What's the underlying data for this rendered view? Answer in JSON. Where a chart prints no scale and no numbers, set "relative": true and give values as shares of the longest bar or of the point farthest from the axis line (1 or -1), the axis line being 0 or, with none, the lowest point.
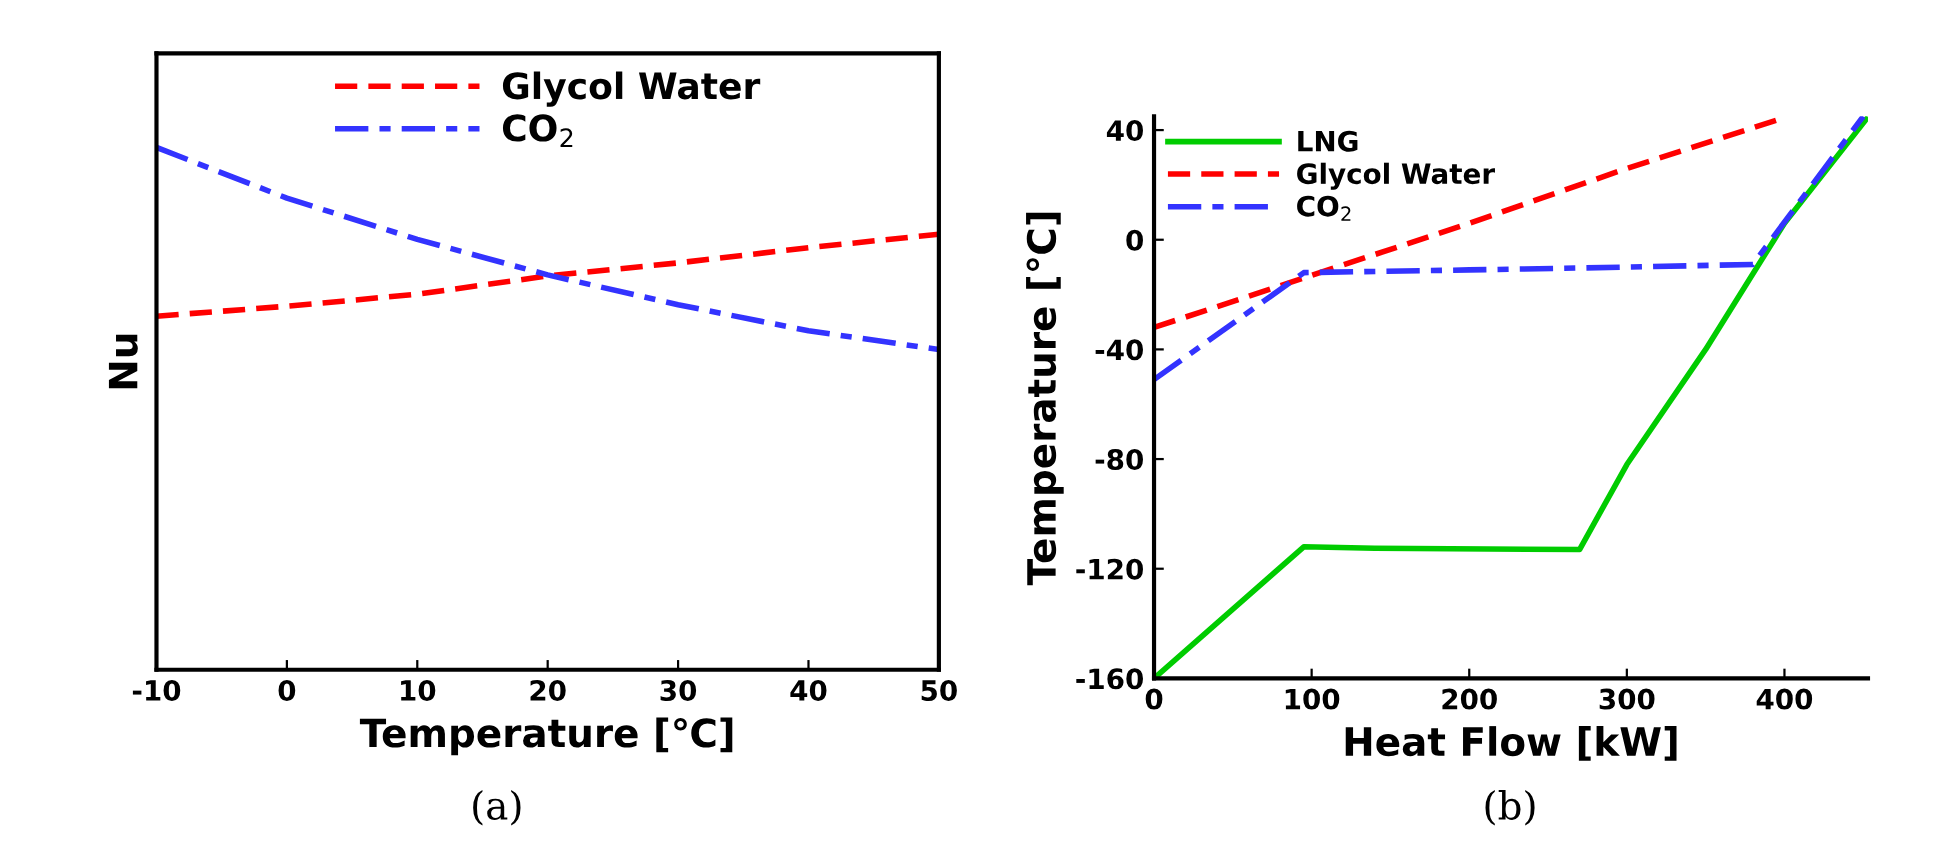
{
  "chart_data": [
    {
      "type": "line",
      "relative": true,
      "xlabel": "Temperature [℃]",
      "ylabel": "Nu",
      "x": [
        -10,
        0,
        10,
        20,
        30,
        40,
        50
      ],
      "xlim": [
        -10,
        50
      ],
      "xticks": [
        -10,
        0,
        10,
        20,
        30,
        40,
        50
      ],
      "tick_labels": "x",
      "legend": "top",
      "grid": false,
      "annotations": [
        "(a)"
      ],
      "series": [
        {
          "name": "Glycol Water",
          "color": "#ff0000",
          "line_style": "dashed",
          "values": [
            0.677,
            0.696,
            0.719,
            0.754,
            0.779,
            0.808,
            0.834
          ]
        },
        {
          "name": "CO$_{2}$",
          "color": "#3333ff",
          "line_style": "dashdot",
          "values": [
            1,
            0.903,
            0.824,
            0.756,
            0.699,
            0.649,
            0.613
          ]
        }
      ]
    },
    {
      "type": "line",
      "xlabel": "Heat Flow [kW]",
      "ylabel": "Temperature [℃]",
      "xlim": [
        0,
        453
      ],
      "ylim": [
        -160,
        45
      ],
      "xticks": [
        0,
        100,
        200,
        300,
        400
      ],
      "yticks": [
        -160,
        -120,
        -80,
        -40,
        0,
        40
      ],
      "legend": "top left",
      "grid": false,
      "annotations": [
        "(b)"
      ],
      "series": [
        {
          "name": "LNG",
          "color": "#00cc00",
          "line_style": "solid",
          "x": [
            0,
            95,
            140,
            270,
            300,
            350,
            400,
            452
          ],
          "values": [
            -160,
            -112,
            -112.5,
            -113,
            -82,
            -40,
            6,
            44
          ]
        },
        {
          "name": "Glycol Water",
          "color": "#ff0000",
          "line_style": "dashed",
          "x": [
            0,
            100,
            200,
            300,
            397
          ],
          "values": [
            -32,
            -13,
            6,
            26,
            44
          ]
        },
        {
          "name": "CO$_{2}$",
          "color": "#3333ff",
          "line_style": "dashdot",
          "x": [
            0,
            95,
            200,
            300,
            380,
            450
          ],
          "values": [
            -51,
            -12,
            -11,
            -10,
            -9,
            45
          ]
        }
      ]
    }
  ]
}
